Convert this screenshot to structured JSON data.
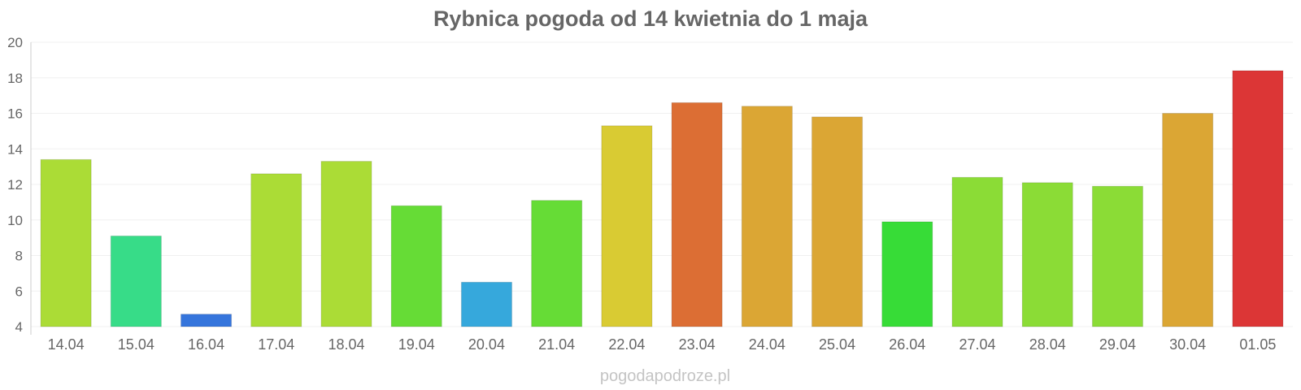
{
  "chart_data": {
    "type": "bar",
    "title": "Rybnica pogoda od 14 kwietnia do 1 maja",
    "xlabel": "",
    "ylabel": "",
    "ylim": [
      4,
      20
    ],
    "yticks": [
      4,
      6,
      8,
      10,
      12,
      14,
      16,
      18,
      20
    ],
    "grid": true,
    "legend": "none",
    "categories": [
      "14.04",
      "15.04",
      "16.04",
      "17.04",
      "18.04",
      "19.04",
      "20.04",
      "21.04",
      "22.04",
      "23.04",
      "24.04",
      "25.04",
      "26.04",
      "27.04",
      "28.04",
      "29.04",
      "30.04",
      "01.05"
    ],
    "values": [
      13.4,
      9.1,
      4.7,
      12.6,
      13.3,
      10.8,
      6.5,
      11.1,
      15.3,
      16.6,
      16.4,
      15.8,
      9.9,
      12.4,
      12.1,
      11.9,
      16.0,
      18.4
    ],
    "colors": [
      "#abdc36",
      "#37dc88",
      "#3575dc",
      "#abdc36",
      "#abdc36",
      "#66dc36",
      "#36a8dc",
      "#66dc36",
      "#d9cb33",
      "#dc6e34",
      "#dba634",
      "#dba634",
      "#37dc37",
      "#8bdc36",
      "#8bdc36",
      "#8bdc36",
      "#dba634",
      "#dc3636"
    ]
  },
  "watermark": "pogodapodroze.pl"
}
